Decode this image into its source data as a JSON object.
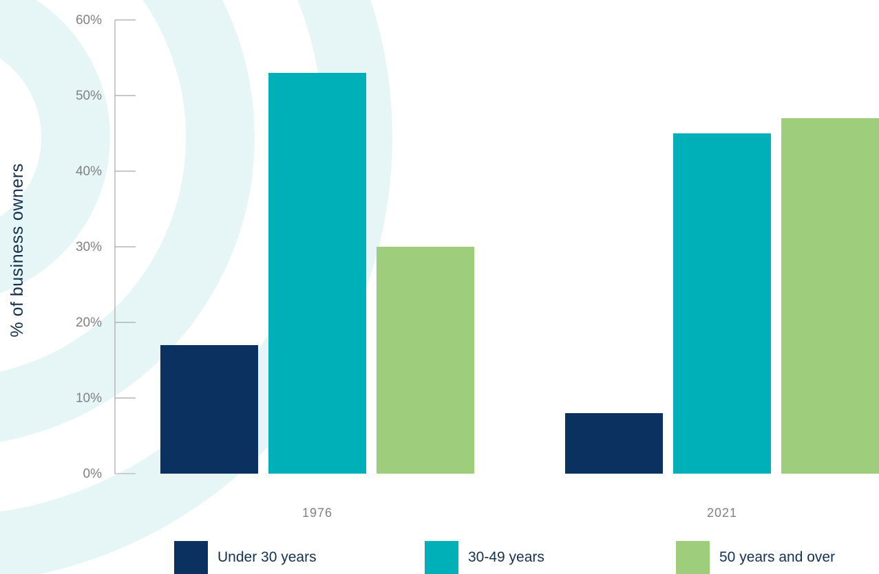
{
  "chart_data": {
    "type": "bar",
    "title": "",
    "xlabel": "",
    "ylabel": "% of business owners",
    "categories": [
      "1976",
      "2021"
    ],
    "series": [
      {
        "name": "Under 30 years",
        "color": "#0b3161",
        "values": [
          17,
          8
        ]
      },
      {
        "name": "30-49 years",
        "color": "#00b0b9",
        "values": [
          53,
          45
        ]
      },
      {
        "name": "50 years and over",
        "color": "#9ecd7b",
        "values": [
          30,
          47
        ]
      }
    ],
    "ylim": [
      0,
      60
    ],
    "y_ticks": [
      0,
      10,
      20,
      30,
      40,
      50,
      60
    ],
    "y_tick_labels": [
      "0%",
      "10%",
      "20%",
      "30%",
      "40%",
      "50%",
      "60%"
    ],
    "grid": false,
    "legend_position": "bottom"
  },
  "colors": {
    "background_decoration": "#e6f6f7",
    "axis": "#a6a6a6"
  }
}
